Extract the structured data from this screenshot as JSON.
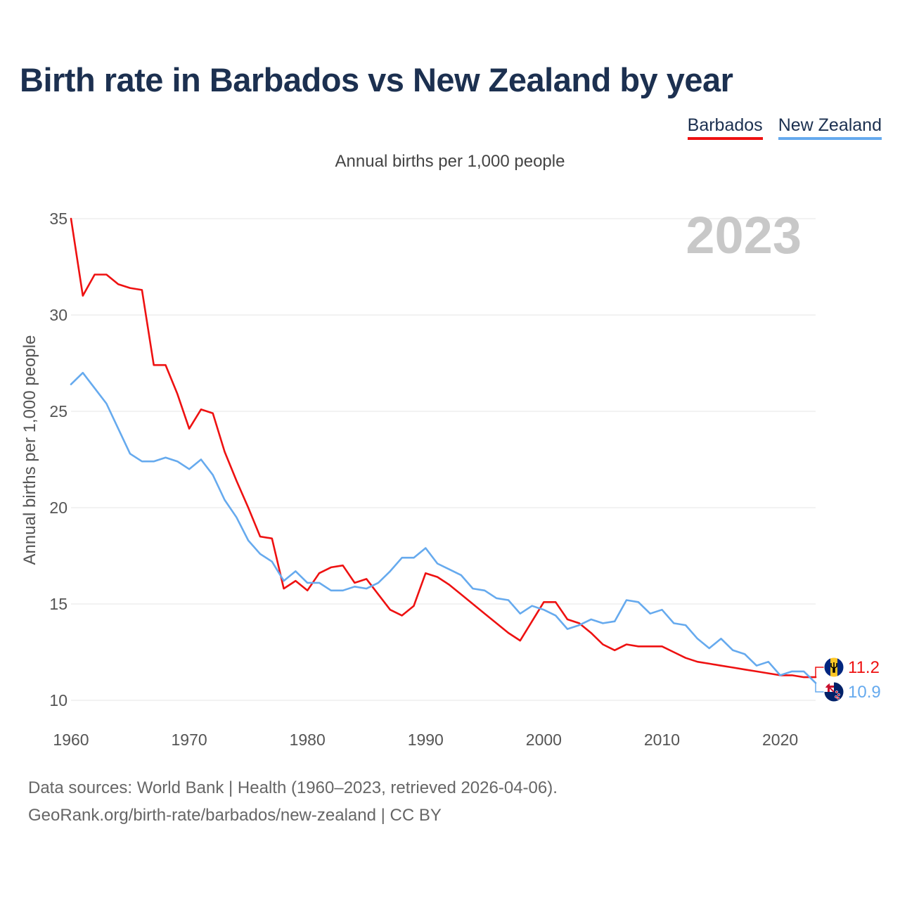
{
  "title": "Birth rate in Barbados vs New Zealand by year",
  "subtitle": "Annual births per 1,000 people",
  "year_label": "2023",
  "legend": [
    {
      "name": "Barbados",
      "color": "#ee1111"
    },
    {
      "name": "New Zealand",
      "color": "#66aaee"
    }
  ],
  "footer": {
    "line1": "Data sources: World Bank | Health (1960–2023, retrieved 2026-04-06).",
    "line2": "GeoRank.org/birth-rate/barbados/new-zealand | CC BY"
  },
  "chart_data": {
    "type": "line",
    "title": "Birth rate in Barbados vs New Zealand by year",
    "xlabel": "",
    "ylabel": "Annual births per 1,000 people",
    "xlim": [
      1960,
      2023
    ],
    "ylim": [
      10,
      35
    ],
    "x_ticks": [
      1960,
      1970,
      1980,
      1990,
      2000,
      2010,
      2020
    ],
    "y_ticks": [
      10,
      15,
      20,
      25,
      30,
      35
    ],
    "grid": true,
    "legend_position": "top-right",
    "x": [
      1960,
      1961,
      1962,
      1963,
      1964,
      1965,
      1966,
      1967,
      1968,
      1969,
      1970,
      1971,
      1972,
      1973,
      1974,
      1975,
      1976,
      1977,
      1978,
      1979,
      1980,
      1981,
      1982,
      1983,
      1984,
      1985,
      1986,
      1987,
      1988,
      1989,
      1990,
      1991,
      1992,
      1993,
      1994,
      1995,
      1996,
      1997,
      1998,
      1999,
      2000,
      2001,
      2002,
      2003,
      2004,
      2005,
      2006,
      2007,
      2008,
      2009,
      2010,
      2011,
      2012,
      2013,
      2014,
      2015,
      2016,
      2017,
      2018,
      2019,
      2020,
      2021,
      2022,
      2023
    ],
    "series": [
      {
        "name": "Barbados",
        "color": "#ee1111",
        "end_value": "11.2",
        "values": [
          35.0,
          31.0,
          32.1,
          32.1,
          31.6,
          31.4,
          31.3,
          27.4,
          27.4,
          25.9,
          24.1,
          25.1,
          24.9,
          22.9,
          21.4,
          20.0,
          18.5,
          18.4,
          15.8,
          16.2,
          15.7,
          16.6,
          16.9,
          17.0,
          16.1,
          16.3,
          15.5,
          14.7,
          14.4,
          14.9,
          16.6,
          16.4,
          16.0,
          15.5,
          15.0,
          14.5,
          14.0,
          13.5,
          13.1,
          14.1,
          15.1,
          15.1,
          14.2,
          14.0,
          13.5,
          12.9,
          12.6,
          12.9,
          12.8,
          12.8,
          12.8,
          12.5,
          12.2,
          12.0,
          11.9,
          11.8,
          11.7,
          11.6,
          11.5,
          11.4,
          11.3,
          11.3,
          11.2,
          11.2
        ]
      },
      {
        "name": "New Zealand",
        "color": "#66aaee",
        "end_value": "10.9",
        "values": [
          26.4,
          27.0,
          26.2,
          25.4,
          24.1,
          22.8,
          22.4,
          22.4,
          22.6,
          22.4,
          22.0,
          22.5,
          21.7,
          20.4,
          19.5,
          18.3,
          17.6,
          17.2,
          16.2,
          16.7,
          16.1,
          16.1,
          15.7,
          15.7,
          15.9,
          15.8,
          16.1,
          16.7,
          17.4,
          17.4,
          17.9,
          17.1,
          16.8,
          16.5,
          15.8,
          15.7,
          15.3,
          15.2,
          14.5,
          14.9,
          14.7,
          14.4,
          13.7,
          13.9,
          14.2,
          14.0,
          14.1,
          15.2,
          15.1,
          14.5,
          14.7,
          14.0,
          13.9,
          13.2,
          12.7,
          13.2,
          12.6,
          12.4,
          11.8,
          12.0,
          11.3,
          11.5,
          11.5,
          10.9
        ]
      }
    ]
  }
}
